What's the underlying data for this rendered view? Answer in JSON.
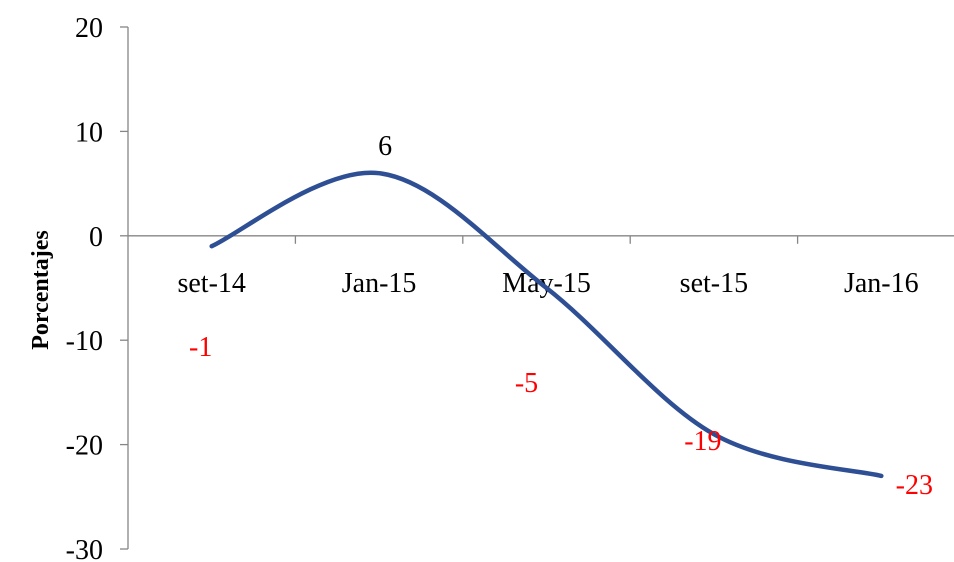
{
  "chart_data": {
    "type": "line",
    "title": "",
    "xlabel": "",
    "ylabel": "Porcentajes",
    "categories": [
      "set-14",
      "Jan-15",
      "May-15",
      "set-15",
      "Jan-16"
    ],
    "ylim": [
      -30,
      20
    ],
    "y_ticks": [
      "20",
      "10",
      "0",
      "-10",
      "-20",
      "-30"
    ],
    "grid": false,
    "legend": "none",
    "series": [
      {
        "color": "#2E4F94",
        "smooth": true,
        "points": [
          {
            "x": "Sep-14",
            "y": -1
          },
          {
            "x": "Jan-15",
            "y": 6
          },
          {
            "x": "May-15",
            "y": -5
          },
          {
            "x": "Sep-15",
            "y": -19
          },
          {
            "x": "Jan-16",
            "y": -23
          }
        ]
      }
    ],
    "data_labels": [
      {
        "text": "-1",
        "color": "#FF0000"
      },
      {
        "text": "6",
        "color": "#000000"
      },
      {
        "text": "-5",
        "color": "#FF0000"
      },
      {
        "text": "-19",
        "color": "#FF0000"
      },
      {
        "text": "-23",
        "color": "#FF0000"
      }
    ]
  }
}
